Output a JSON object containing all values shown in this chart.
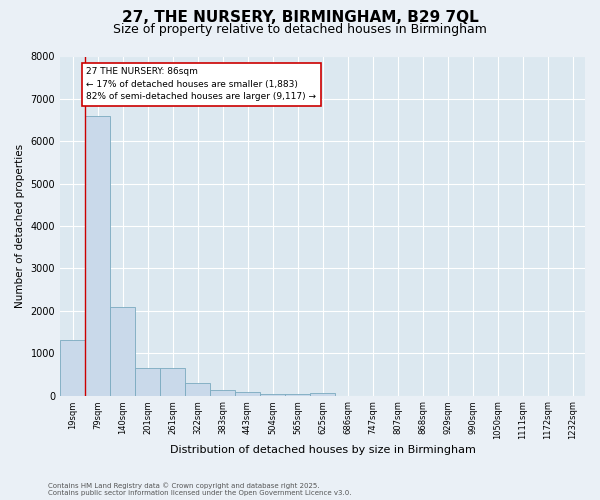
{
  "title1": "27, THE NURSERY, BIRMINGHAM, B29 7QL",
  "title2": "Size of property relative to detached houses in Birmingham",
  "xlabel": "Distribution of detached houses by size in Birmingham",
  "ylabel": "Number of detached properties",
  "categories": [
    "19sqm",
    "79sqm",
    "140sqm",
    "201sqm",
    "261sqm",
    "322sqm",
    "383sqm",
    "443sqm",
    "504sqm",
    "565sqm",
    "625sqm",
    "686sqm",
    "747sqm",
    "807sqm",
    "868sqm",
    "929sqm",
    "990sqm",
    "1050sqm",
    "1111sqm",
    "1172sqm",
    "1232sqm"
  ],
  "values": [
    1300,
    6600,
    2100,
    650,
    650,
    290,
    120,
    75,
    30,
    30,
    60,
    0,
    0,
    0,
    0,
    0,
    0,
    0,
    0,
    0,
    0
  ],
  "bar_color": "#c9d9ea",
  "bar_edge_color": "#7aaabf",
  "annotation_line1": "27 THE NURSERY: 86sqm",
  "annotation_line2": "← 17% of detached houses are smaller (1,883)",
  "annotation_line3": "82% of semi-detached houses are larger (9,117) →",
  "annotation_box_color": "#ffffff",
  "annotation_box_edge_color": "#cc0000",
  "property_vline_color": "#cc0000",
  "ylim": [
    0,
    8000
  ],
  "yticks": [
    0,
    1000,
    2000,
    3000,
    4000,
    5000,
    6000,
    7000,
    8000
  ],
  "footer1": "Contains HM Land Registry data © Crown copyright and database right 2025.",
  "footer2": "Contains public sector information licensed under the Open Government Licence v3.0.",
  "bg_color": "#dce8f0",
  "fig_bg_color": "#eaf0f6",
  "grid_color": "#ffffff",
  "title1_fontsize": 11,
  "title2_fontsize": 9,
  "property_vline_x": 0.5
}
